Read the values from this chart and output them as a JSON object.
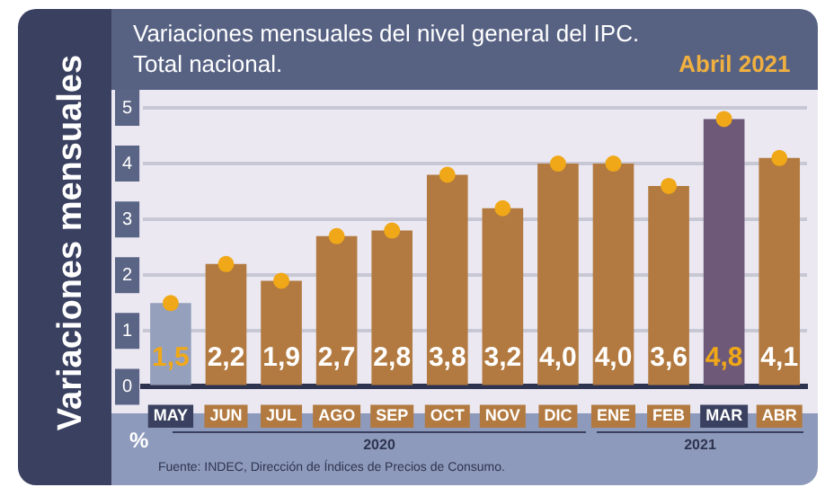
{
  "chart_data": {
    "type": "bar",
    "title": "Variaciones mensuales del nivel general del IPC. Total nacional.",
    "subtitle": "Abril 2021",
    "ylabel": "Variaciones mensuales",
    "categories": [
      "MAY",
      "JUN",
      "JUL",
      "AGO",
      "SEP",
      "OCT",
      "NOV",
      "DIC",
      "ENE",
      "FEB",
      "MAR",
      "ABR"
    ],
    "series": [
      {
        "values": [
          1.5,
          2.2,
          1.9,
          2.7,
          2.8,
          3.8,
          3.2,
          4.0,
          4.0,
          3.6,
          4.8,
          4.1
        ],
        "colors": [
          "#95a0bd",
          "#b27a40",
          "#b27a40",
          "#b27a40",
          "#b27a40",
          "#b27a40",
          "#b27a40",
          "#b27a40",
          "#b27a40",
          "#b27a40",
          "#6e5a78",
          "#b27a40"
        ],
        "value_labels": [
          "1,5",
          "2,2",
          "1,9",
          "2,7",
          "2,8",
          "3,8",
          "3,2",
          "4,0",
          "4,0",
          "3,6",
          "4,8",
          "4,1"
        ]
      },
      {
        "type": "scatter",
        "x": [
          "MAY",
          "JUN",
          "JUL",
          "AGO",
          "SEP",
          "OCT",
          "NOV",
          "DIC",
          "ENE",
          "FEB",
          "MAR",
          "ABR"
        ],
        "values": [
          1.5,
          2.2,
          1.9,
          2.7,
          2.8,
          3.8,
          3.2,
          4.0,
          4.0,
          3.6,
          4.8,
          4.1
        ],
        "color": "#f0a818"
      }
    ],
    "ylim": [
      0,
      5
    ],
    "yticks": [
      0,
      1,
      2,
      3,
      4,
      5
    ],
    "grid": "y",
    "legend": false,
    "marker": "circle",
    "annotations": [
      "%",
      "2020",
      "2021",
      "Fuente: INDEC, Dirección de Índices de Precios de Consumo."
    ]
  }
}
